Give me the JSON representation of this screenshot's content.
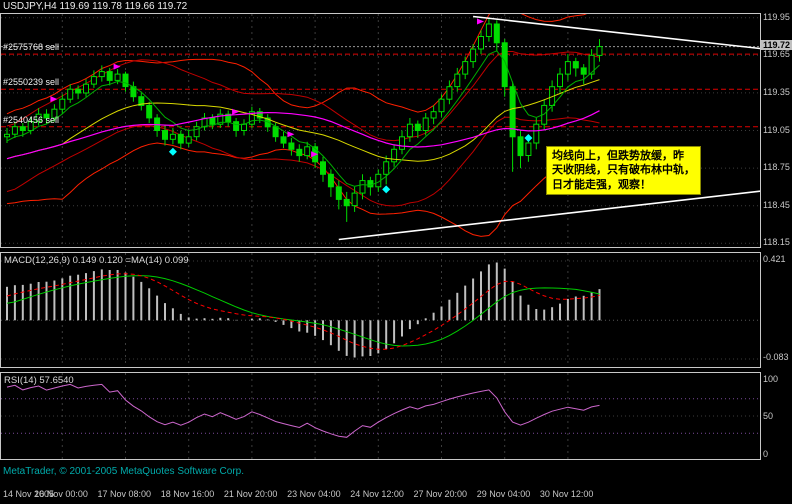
{
  "header": {
    "title": "USDJPY,H4  119.69 119.78 119.66 119.72"
  },
  "colors": {
    "background": "#000000",
    "panel_border": "#C8C8C8",
    "grid": "#3C3C3C",
    "candle": "#00DC00",
    "band": "#FF2000",
    "envelope": "#C00000",
    "ma_yellow": "#D8D800",
    "ma_green": "#00B000",
    "ma_magenta": "#FF00FF",
    "trendline": "#FFFFFF",
    "order_line": "#E00000",
    "current_line": "#989898",
    "macd_hist": "#C0C0C0",
    "macd_ma": "#00CC00",
    "macd_signal": "#FF0000",
    "rsi": "#CC66CC",
    "rsi_level": "#7A4B9A",
    "marker_arrow": "#FF00FF",
    "marker_diamond": "#00FFFF",
    "annotation_bg": "#FFFF00"
  },
  "price_scale": {
    "ticks": [
      119.95,
      119.65,
      119.35,
      119.05,
      118.75,
      118.45,
      118.15
    ],
    "current": 119.72
  },
  "orders": [
    {
      "label": "#2575768 sell",
      "price": 119.66
    },
    {
      "label": "#2550239 sell",
      "price": 119.38
    },
    {
      "label": "#2540456 sell",
      "price": 119.08
    }
  ],
  "annotation": {
    "lines": [
      "均线向上，但跌势放缓，昨",
      "天收阴线，只有破布林中轨，",
      "日才能走强，观察！"
    ]
  },
  "macd_panel": {
    "label": "MACD(12,26,9) 0.149 0.120 =MA(14) 0.099",
    "scale_top": "0.421",
    "scale_bottom": "-0.083"
  },
  "rsi_panel": {
    "label": "RSI(14) 57.6540",
    "scale_top": "100",
    "scale_mid": "50",
    "scale_bottom": "0"
  },
  "footer": {
    "copyright": "MetaTrader, © 2001-2005 MetaQuotes Software Corp.",
    "time_labels": [
      "14 Nov 2005",
      "16 Nov 00:00",
      "17 Nov 08:00",
      "18 Nov 16:00",
      "21 Nov 20:00",
      "23 Nov 04:00",
      "24 Nov 12:00",
      "27 Nov 20:00",
      "29 Nov 04:00",
      "30 Nov 12:00"
    ]
  },
  "chart_data": {
    "type": "candlestick",
    "symbol": "USDJPY",
    "timeframe": "H4",
    "ylim": [
      118.12,
      119.98
    ],
    "indicators": {
      "bollinger": "20,2",
      "envelopes": "14 ±0.22%",
      "moving_averages": [
        6,
        20,
        34
      ],
      "macd": "12,26,9",
      "rsi": 14
    },
    "prehistory_closes": [
      118.5,
      118.55,
      118.62,
      118.68,
      118.75,
      118.82,
      118.88,
      118.92,
      118.96,
      119.0,
      119.02,
      119.0
    ],
    "ohlc": [
      [
        119.0,
        119.07,
        118.95,
        119.02
      ],
      [
        119.02,
        119.12,
        118.99,
        119.08
      ],
      [
        119.08,
        119.11,
        119.0,
        119.05
      ],
      [
        119.05,
        119.16,
        119.02,
        119.12
      ],
      [
        119.12,
        119.23,
        119.09,
        119.18
      ],
      [
        119.18,
        119.22,
        119.1,
        119.15
      ],
      [
        119.15,
        119.26,
        119.12,
        119.22
      ],
      [
        119.22,
        119.34,
        119.18,
        119.3
      ],
      [
        119.3,
        119.42,
        119.27,
        119.38
      ],
      [
        119.38,
        119.41,
        119.3,
        119.35
      ],
      [
        119.35,
        119.46,
        119.32,
        119.42
      ],
      [
        119.42,
        119.53,
        119.39,
        119.48
      ],
      [
        119.48,
        119.57,
        119.44,
        119.52
      ],
      [
        119.52,
        119.55,
        119.41,
        119.45
      ],
      [
        119.45,
        119.54,
        119.42,
        119.5
      ],
      [
        119.5,
        119.52,
        119.36,
        119.4
      ],
      [
        119.4,
        119.44,
        119.28,
        119.32
      ],
      [
        119.32,
        119.36,
        119.21,
        119.25
      ],
      [
        119.25,
        119.28,
        119.11,
        119.15
      ],
      [
        119.15,
        119.18,
        119.0,
        119.05
      ],
      [
        119.05,
        119.09,
        118.93,
        118.98
      ],
      [
        118.98,
        119.07,
        118.94,
        119.02
      ],
      [
        119.02,
        119.05,
        118.9,
        118.95
      ],
      [
        118.95,
        119.05,
        118.92,
        119.0
      ],
      [
        119.0,
        119.12,
        118.97,
        119.08
      ],
      [
        119.08,
        119.19,
        119.05,
        119.15
      ],
      [
        119.15,
        119.18,
        119.06,
        119.1
      ],
      [
        119.1,
        119.22,
        119.07,
        119.18
      ],
      [
        119.18,
        119.21,
        119.08,
        119.12
      ],
      [
        119.12,
        119.15,
        119.0,
        119.05
      ],
      [
        119.05,
        119.14,
        119.01,
        119.1
      ],
      [
        119.1,
        119.24,
        119.07,
        119.2
      ],
      [
        119.2,
        119.23,
        119.11,
        119.15
      ],
      [
        119.15,
        119.18,
        119.04,
        119.08
      ],
      [
        119.08,
        119.11,
        118.96,
        119.0
      ],
      [
        119.0,
        119.04,
        118.91,
        118.95
      ],
      [
        118.95,
        118.99,
        118.85,
        118.9
      ],
      [
        118.9,
        118.94,
        118.8,
        118.85
      ],
      [
        118.85,
        118.96,
        118.82,
        118.92
      ],
      [
        118.92,
        118.95,
        118.75,
        118.8
      ],
      [
        118.8,
        118.84,
        118.64,
        118.7
      ],
      [
        118.7,
        118.74,
        118.52,
        118.6
      ],
      [
        118.6,
        118.65,
        118.42,
        118.5
      ],
      [
        118.5,
        118.56,
        118.32,
        118.45
      ],
      [
        118.45,
        118.6,
        118.4,
        118.55
      ],
      [
        118.55,
        118.7,
        118.5,
        118.65
      ],
      [
        118.65,
        118.68,
        118.53,
        118.6
      ],
      [
        118.6,
        118.74,
        118.56,
        118.7
      ],
      [
        118.7,
        118.85,
        118.62,
        118.8
      ],
      [
        118.8,
        118.94,
        118.76,
        118.9
      ],
      [
        118.9,
        119.05,
        118.86,
        119.0
      ],
      [
        119.0,
        119.15,
        118.96,
        119.1
      ],
      [
        119.1,
        119.13,
        118.99,
        119.05
      ],
      [
        119.05,
        119.19,
        119.01,
        119.15
      ],
      [
        119.15,
        119.25,
        119.1,
        119.2
      ],
      [
        119.2,
        119.34,
        119.16,
        119.3
      ],
      [
        119.3,
        119.45,
        119.26,
        119.4
      ],
      [
        119.4,
        119.55,
        119.36,
        119.5
      ],
      [
        119.5,
        119.64,
        119.46,
        119.6
      ],
      [
        119.6,
        119.74,
        119.55,
        119.7
      ],
      [
        119.7,
        119.85,
        119.66,
        119.8
      ],
      [
        119.8,
        119.95,
        119.76,
        119.9
      ],
      [
        119.9,
        119.93,
        119.68,
        119.75
      ],
      [
        119.75,
        119.78,
        119.32,
        119.4
      ],
      [
        119.4,
        119.44,
        118.72,
        119.0
      ],
      [
        119.0,
        119.05,
        118.75,
        118.85
      ],
      [
        118.85,
        119.0,
        118.8,
        118.95
      ],
      [
        118.95,
        119.15,
        118.9,
        119.1
      ],
      [
        119.1,
        119.3,
        119.05,
        119.25
      ],
      [
        119.25,
        119.45,
        119.2,
        119.4
      ],
      [
        119.4,
        119.55,
        119.35,
        119.5
      ],
      [
        119.5,
        119.66,
        119.45,
        119.6
      ],
      [
        119.6,
        119.63,
        119.48,
        119.55
      ],
      [
        119.55,
        119.58,
        119.42,
        119.5
      ],
      [
        119.5,
        119.7,
        119.46,
        119.65
      ],
      [
        119.65,
        119.78,
        119.6,
        119.72
      ]
    ],
    "trendlines": [
      {
        "b1": 59,
        "p1": 119.96,
        "b2": 96,
        "p2": 119.7
      },
      {
        "b1": 42,
        "p1": 118.18,
        "b2": 96,
        "p2": 118.57
      }
    ],
    "markers": [
      {
        "bar": 6,
        "price": 119.3,
        "type": "sell-arrow"
      },
      {
        "bar": 14,
        "price": 119.56,
        "type": "sell-arrow"
      },
      {
        "bar": 29,
        "price": 119.2,
        "type": "sell-arrow"
      },
      {
        "bar": 36,
        "price": 119.02,
        "type": "sell-arrow"
      },
      {
        "bar": 39,
        "price": 118.86,
        "type": "sell-arrow"
      },
      {
        "bar": 60,
        "price": 119.92,
        "type": "sell-arrow"
      },
      {
        "bar": 21,
        "price": 118.88,
        "type": "diamond"
      },
      {
        "bar": 48,
        "price": 118.58,
        "type": "diamond"
      },
      {
        "bar": 66,
        "price": 118.99,
        "type": "diamond"
      }
    ]
  }
}
